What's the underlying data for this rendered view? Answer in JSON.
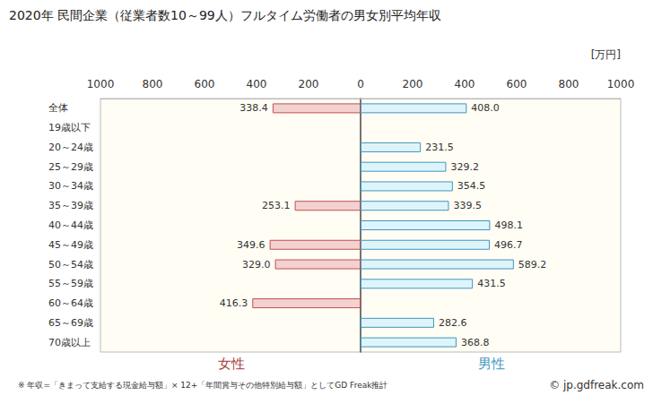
{
  "chart_data": {
    "type": "bar",
    "orientation": "horizontal",
    "title": "2020年 民間企業（従業者数10～99人）フルタイム労働者の男女別平均年収",
    "xlabel": "[万円]",
    "categories": [
      "全体",
      "19歳以下",
      "20～24歳",
      "25～29歳",
      "30～34歳",
      "35～39歳",
      "40～44歳",
      "45～49歳",
      "50～54歳",
      "55～59歳",
      "60～64歳",
      "65～69歳",
      "70歳以上"
    ],
    "series": [
      {
        "name": "女性",
        "color": "#f3d1d0",
        "values": [
          338.4,
          null,
          null,
          null,
          null,
          253.1,
          null,
          349.6,
          329.0,
          null,
          416.3,
          null,
          null
        ],
        "value_labels": [
          "338.4",
          null,
          null,
          null,
          null,
          "253.1",
          null,
          "349.6",
          "329.0",
          null,
          "416.3",
          null,
          null
        ]
      },
      {
        "name": "男性",
        "color": "#def4fb",
        "values": [
          408.0,
          null,
          231.5,
          329.2,
          354.5,
          339.5,
          498.1,
          496.7,
          589.2,
          431.5,
          null,
          282.6,
          368.8
        ],
        "value_labels": [
          "408.0",
          null,
          "231.5",
          "329.2",
          "354.5",
          "339.5",
          "498.1",
          "496.7",
          "589.2",
          "431.5",
          null,
          "282.6",
          "368.8"
        ]
      }
    ],
    "xlim": [
      0,
      1000
    ],
    "xticks": [
      0,
      200,
      400,
      600,
      800,
      1000
    ],
    "data_labels": true,
    "grid": false,
    "annotations": [
      "※ 年収=「きまって支給する現金給与額」× 12+「年間賞与その他特別給与額」としてGD Freak推計",
      "© jp.gdfreak.com"
    ]
  }
}
